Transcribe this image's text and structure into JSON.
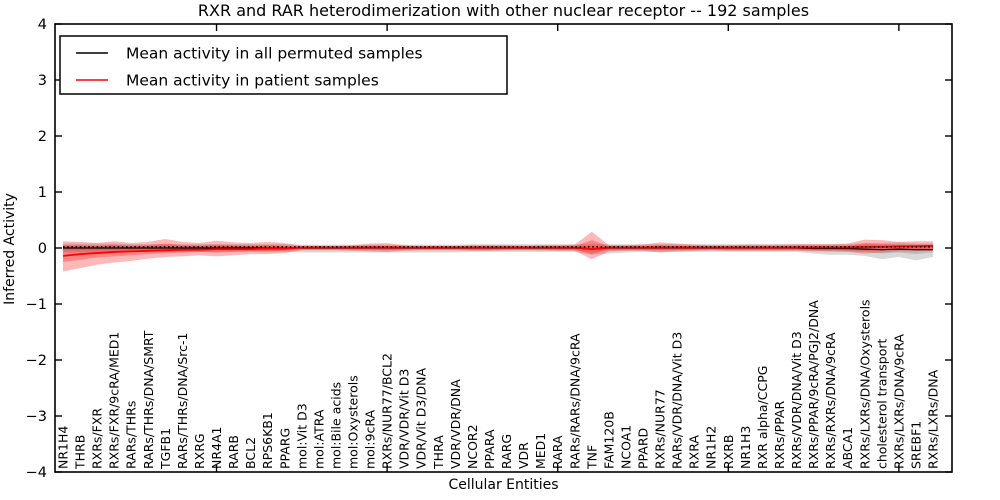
{
  "figure": {
    "title": "RXR and RAR heterodimerization with other nuclear receptor -- 192 samples",
    "xlabel": "Cellular Entities",
    "ylabel": "Inferred Activity"
  },
  "legend": {
    "entries": [
      {
        "label": "Mean activity in all permuted samples",
        "color": "#000000"
      },
      {
        "label": "Mean activity in patient samples",
        "color": "#ff0000"
      }
    ],
    "position": "upper left"
  },
  "chart_data": {
    "type": "line",
    "title": "RXR and RAR heterodimerization with other nuclear receptor -- 192 samples",
    "xlabel": "Cellular Entities",
    "ylabel": "Inferred Activity",
    "ylim": [
      -4,
      4
    ],
    "grid": false,
    "legend_position": "upper left",
    "yticks": [
      {
        "value": 4,
        "label": "4"
      },
      {
        "value": 3,
        "label": "3"
      },
      {
        "value": 2,
        "label": "2"
      },
      {
        "value": 1,
        "label": "1"
      },
      {
        "value": 0,
        "label": "0"
      },
      {
        "value": -1,
        "label": "−1"
      },
      {
        "value": -2,
        "label": "−2"
      },
      {
        "value": -3,
        "label": "−3"
      },
      {
        "value": -4,
        "label": "−4"
      }
    ],
    "xtick_marks_at_indices": [
      9,
      19,
      29,
      39,
      49
    ],
    "categories": [
      "NR1H4",
      "THRB",
      "RXRs/FXR",
      "RXRs/FXR/9cRA/MED1",
      "RARs/THRs",
      "RARs/THRs/DNA/SMRT",
      "TGFB1",
      "RARs/THRs/DNA/Src-1",
      "RXRG",
      "NR4A1",
      "RARB",
      "BCL2",
      "RPS6KB1",
      "PPARG",
      "mol:Vit D3",
      "mol:ATRA",
      "mol:Bile acids",
      "mol:Oxysterols",
      "mol:9cRA",
      "RXRs/NUR77/BCL2",
      "VDR/VDR/Vit D3",
      "VDR/Vit D3/DNA",
      "THRA",
      "VDR/VDR/DNA",
      "NCOR2",
      "PPARA",
      "RARG",
      "VDR",
      "MED1",
      "RARA",
      "RARs/RARs/DNA/9cRA",
      "TNF",
      "FAM120B",
      "NCOA1",
      "PPARD",
      "RXRs/NUR77",
      "RARs/VDR/DNA/Vit D3",
      "RXRA",
      "NR1H2",
      "RXRB",
      "NR1H3",
      "RXR alpha/CCPG",
      "RXRs/PPAR",
      "RXRs/VDR/DNA/Vit D3",
      "RXRs/PPAR/9cRA/PGJ2/DNA",
      "RXRs/RXRs/DNA/9cRA",
      "ABCA1",
      "RXRs/LXRs/DNA/Oxysterols",
      "cholesterol transport",
      "RXRs/LXRs/DNA/9cRA",
      "SREBF1",
      "RXRs/LXRs/DNA"
    ],
    "series": [
      {
        "name": "Mean activity in all permuted samples",
        "kind": "line",
        "color": "#000000",
        "width": 1.2,
        "values": [
          0,
          0,
          0,
          0,
          0,
          0,
          0,
          0,
          0,
          0,
          0,
          0,
          0,
          0,
          0,
          0,
          0,
          0,
          0,
          0,
          0,
          0,
          0,
          0,
          0,
          0,
          0,
          0,
          0,
          0,
          0,
          -0.02,
          0,
          0,
          0,
          0,
          0,
          0,
          0,
          0,
          0,
          0,
          0,
          0,
          -0.01,
          -0.01,
          -0.01,
          -0.02,
          -0.03,
          -0.02,
          -0.03,
          -0.03
        ]
      },
      {
        "name": "Mean activity in patient samples",
        "kind": "line",
        "color": "#ff0000",
        "width": 1.8,
        "values": [
          -0.14,
          -0.11,
          -0.09,
          -0.07,
          -0.06,
          -0.05,
          -0.04,
          -0.03,
          -0.03,
          -0.02,
          -0.02,
          -0.02,
          -0.01,
          -0.01,
          0.01,
          0.01,
          0.01,
          0.01,
          0.01,
          0.01,
          0.01,
          0.01,
          0.01,
          0.01,
          0.01,
          0.01,
          0.01,
          0.01,
          0.01,
          0.01,
          0.01,
          -0.02,
          0.01,
          0.01,
          0.01,
          0.01,
          0.01,
          0.01,
          0.01,
          0.01,
          0.01,
          0.01,
          0.01,
          0.01,
          0.01,
          0.01,
          0.01,
          0.02,
          0.02,
          0.03,
          0.03,
          0.04
        ]
      },
      {
        "name": "Permuted samples outer band",
        "kind": "band",
        "color": "#808080",
        "opacity": 0.3,
        "upper": [
          0.08,
          0.08,
          0.08,
          0.08,
          0.07,
          0.07,
          0.07,
          0.07,
          0.07,
          0.07,
          0.07,
          0.07,
          0.07,
          0.07,
          0.06,
          0.06,
          0.06,
          0.06,
          0.06,
          0.06,
          0.06,
          0.06,
          0.06,
          0.06,
          0.07,
          0.07,
          0.07,
          0.07,
          0.07,
          0.07,
          0.07,
          0.07,
          0.07,
          0.07,
          0.07,
          0.07,
          0.07,
          0.07,
          0.07,
          0.07,
          0.07,
          0.07,
          0.07,
          0.07,
          0.07,
          0.07,
          0.07,
          0.09,
          0.09,
          0.1,
          0.08,
          0.08
        ],
        "lower": [
          -0.08,
          -0.08,
          -0.08,
          -0.08,
          -0.07,
          -0.07,
          -0.07,
          -0.07,
          -0.07,
          -0.07,
          -0.07,
          -0.07,
          -0.07,
          -0.07,
          -0.08,
          -0.08,
          -0.08,
          -0.08,
          -0.08,
          -0.08,
          -0.08,
          -0.08,
          -0.08,
          -0.08,
          -0.07,
          -0.07,
          -0.07,
          -0.07,
          -0.07,
          -0.07,
          -0.07,
          -0.12,
          -0.1,
          -0.08,
          -0.07,
          -0.07,
          -0.07,
          -0.07,
          -0.07,
          -0.07,
          -0.07,
          -0.07,
          -0.07,
          -0.07,
          -0.1,
          -0.12,
          -0.12,
          -0.14,
          -0.2,
          -0.16,
          -0.22,
          -0.16
        ]
      },
      {
        "name": "Permuted samples inner band",
        "kind": "band",
        "color": "#808080",
        "opacity": 0.3,
        "upper": [
          0.04,
          0.04,
          0.04,
          0.04,
          0.04,
          0.04,
          0.04,
          0.04,
          0.04,
          0.04,
          0.04,
          0.04,
          0.04,
          0.04,
          0.03,
          0.03,
          0.03,
          0.03,
          0.03,
          0.03,
          0.03,
          0.03,
          0.03,
          0.03,
          0.04,
          0.04,
          0.04,
          0.04,
          0.04,
          0.04,
          0.04,
          0.04,
          0.04,
          0.04,
          0.04,
          0.04,
          0.04,
          0.04,
          0.04,
          0.04,
          0.04,
          0.04,
          0.04,
          0.04,
          0.04,
          0.04,
          0.04,
          0.05,
          0.05,
          0.05,
          0.04,
          0.04
        ],
        "lower": [
          -0.04,
          -0.04,
          -0.04,
          -0.04,
          -0.04,
          -0.04,
          -0.04,
          -0.04,
          -0.04,
          -0.04,
          -0.04,
          -0.04,
          -0.04,
          -0.04,
          -0.03,
          -0.03,
          -0.03,
          -0.03,
          -0.03,
          -0.03,
          -0.03,
          -0.03,
          -0.03,
          -0.03,
          -0.04,
          -0.04,
          -0.04,
          -0.04,
          -0.04,
          -0.04,
          -0.04,
          -0.06,
          -0.05,
          -0.04,
          -0.04,
          -0.04,
          -0.04,
          -0.04,
          -0.04,
          -0.04,
          -0.04,
          -0.04,
          -0.04,
          -0.04,
          -0.05,
          -0.06,
          -0.06,
          -0.07,
          -0.1,
          -0.08,
          -0.11,
          -0.08
        ]
      },
      {
        "name": "Patient samples outer band",
        "kind": "band",
        "color": "#ff0000",
        "opacity": 0.28,
        "upper": [
          0.12,
          0.11,
          0.09,
          0.12,
          0.09,
          0.11,
          0.16,
          0.11,
          0.09,
          0.13,
          0.1,
          0.09,
          0.11,
          0.09,
          0.04,
          0.04,
          0.04,
          0.05,
          0.08,
          0.09,
          0.05,
          0.04,
          0.04,
          0.04,
          0.05,
          0.05,
          0.05,
          0.04,
          0.05,
          0.05,
          0.06,
          0.29,
          0.05,
          0.05,
          0.06,
          0.1,
          0.08,
          0.06,
          0.05,
          0.05,
          0.06,
          0.06,
          0.06,
          0.07,
          0.07,
          0.07,
          0.08,
          0.15,
          0.14,
          0.11,
          0.12,
          0.12
        ],
        "lower": [
          -0.42,
          -0.36,
          -0.3,
          -0.26,
          -0.23,
          -0.19,
          -0.16,
          -0.15,
          -0.13,
          -0.15,
          -0.13,
          -0.11,
          -0.11,
          -0.09,
          -0.04,
          -0.04,
          -0.04,
          -0.05,
          -0.06,
          -0.07,
          -0.05,
          -0.04,
          -0.04,
          -0.04,
          -0.05,
          -0.05,
          -0.04,
          -0.04,
          -0.04,
          -0.05,
          -0.05,
          -0.2,
          -0.06,
          -0.05,
          -0.05,
          -0.08,
          -0.06,
          -0.05,
          -0.04,
          -0.05,
          -0.05,
          -0.05,
          -0.05,
          -0.05,
          -0.06,
          -0.06,
          -0.07,
          -0.1,
          -0.08,
          -0.06,
          -0.06,
          -0.05
        ]
      },
      {
        "name": "Patient samples inner band",
        "kind": "band",
        "color": "#ff0000",
        "opacity": 0.28,
        "upper": [
          0.05,
          0.05,
          0.04,
          0.06,
          0.04,
          0.05,
          0.08,
          0.05,
          0.04,
          0.06,
          0.05,
          0.04,
          0.05,
          0.04,
          0.02,
          0.02,
          0.02,
          0.03,
          0.04,
          0.04,
          0.03,
          0.02,
          0.02,
          0.02,
          0.03,
          0.03,
          0.03,
          0.02,
          0.03,
          0.03,
          0.03,
          0.14,
          0.03,
          0.03,
          0.03,
          0.05,
          0.04,
          0.03,
          0.03,
          0.03,
          0.03,
          0.03,
          0.03,
          0.04,
          0.04,
          0.04,
          0.04,
          0.08,
          0.07,
          0.06,
          0.06,
          0.06
        ],
        "lower": [
          -0.25,
          -0.21,
          -0.17,
          -0.15,
          -0.13,
          -0.11,
          -0.09,
          -0.08,
          -0.07,
          -0.08,
          -0.07,
          -0.06,
          -0.06,
          -0.05,
          -0.02,
          -0.02,
          -0.02,
          -0.03,
          -0.03,
          -0.04,
          -0.03,
          -0.02,
          -0.02,
          -0.02,
          -0.03,
          -0.03,
          -0.02,
          -0.02,
          -0.02,
          -0.03,
          -0.03,
          -0.11,
          -0.03,
          -0.03,
          -0.03,
          -0.04,
          -0.03,
          -0.03,
          -0.02,
          -0.03,
          -0.03,
          -0.03,
          -0.03,
          -0.03,
          -0.03,
          -0.03,
          -0.04,
          -0.05,
          -0.04,
          -0.03,
          -0.03,
          -0.03
        ]
      }
    ],
    "reference_line": {
      "value": 0.02,
      "style": "dotted",
      "color": "#000000"
    }
  }
}
